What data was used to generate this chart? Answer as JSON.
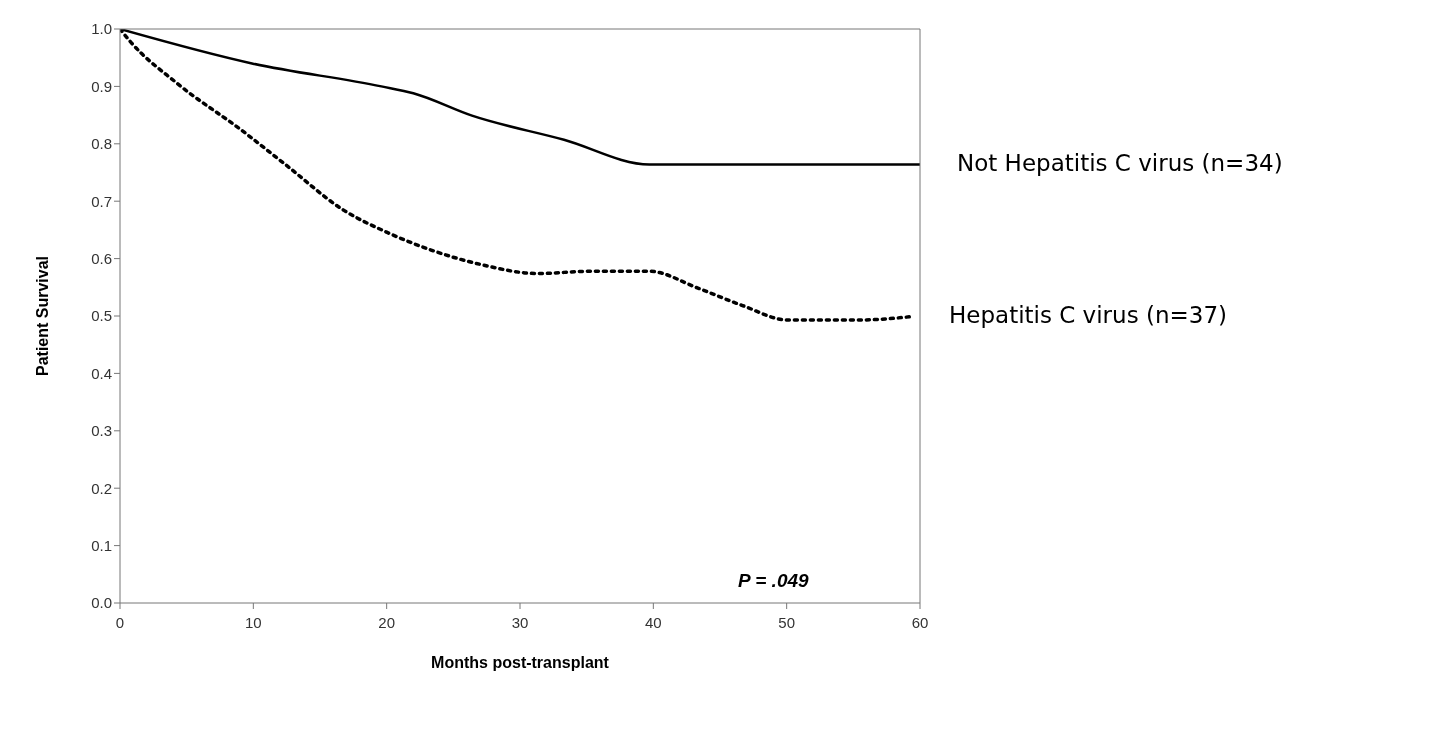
{
  "chart_data": {
    "type": "line",
    "xlabel": "Months post-transplant",
    "ylabel": "Patient Survival",
    "xlim": [
      0,
      60
    ],
    "xticks": [
      0,
      10,
      20,
      30,
      40,
      50,
      60
    ],
    "ylim": [
      0,
      1
    ],
    "yticks": [
      {
        "value": 0,
        "label": "0.0"
      },
      {
        "value": 0.1,
        "label": "0.1"
      },
      {
        "value": 0.2,
        "label": "0.2"
      },
      {
        "value": 0.3,
        "label": "0.3"
      },
      {
        "value": 0.4,
        "label": "0.4"
      },
      {
        "value": 0.5,
        "label": "0.5"
      },
      {
        "value": 0.6,
        "label": "0.6"
      },
      {
        "value": 0.7,
        "label": "0.7"
      },
      {
        "value": 0.8,
        "label": "0.8"
      },
      {
        "value": 0.9,
        "label": "0.9"
      },
      {
        "value": 1,
        "label": "1.0"
      }
    ],
    "marker": "none",
    "series": [
      {
        "name": "Not Hepatitis C virus (n=34)",
        "color": "#000000",
        "line_style": "solid",
        "x": [
          0,
          9.9,
          19.6,
          22,
          26.4,
          33.3,
          39.7,
          60
        ],
        "values": [
          1.0,
          0.94,
          0.9,
          0.888,
          0.849,
          0.807,
          0.764,
          0.764
        ]
      },
      {
        "name": "Hepatitis C virus (n=37)",
        "color": "#000000",
        "line_style": "dotted",
        "x": [
          0,
          0.7,
          4.3,
          9.1,
          12.4,
          16.8,
          20,
          23.2,
          27.2,
          31.3,
          35.3,
          39.7,
          43.3,
          46.6,
          50.1,
          55.4,
          59.4
        ],
        "values": [
          1.0,
          0.98,
          0.905,
          0.824,
          0.764,
          0.684,
          0.646,
          0.616,
          0.589,
          0.574,
          0.578,
          0.578,
          0.549,
          0.519,
          0.493,
          0.493,
          0.499
        ]
      }
    ],
    "annotations": [
      "P = .049"
    ]
  }
}
